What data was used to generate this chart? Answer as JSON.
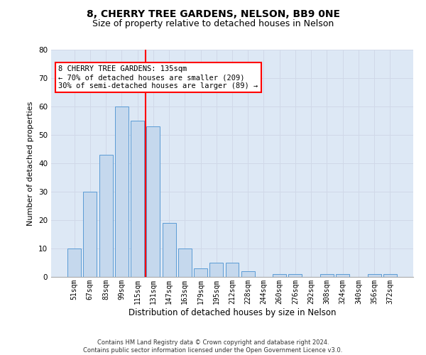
{
  "title": "8, CHERRY TREE GARDENS, NELSON, BB9 0NE",
  "subtitle": "Size of property relative to detached houses in Nelson",
  "xlabel": "Distribution of detached houses by size in Nelson",
  "ylabel": "Number of detached properties",
  "categories": [
    "51sqm",
    "67sqm",
    "83sqm",
    "99sqm",
    "115sqm",
    "131sqm",
    "147sqm",
    "163sqm",
    "179sqm",
    "195sqm",
    "212sqm",
    "228sqm",
    "244sqm",
    "260sqm",
    "276sqm",
    "292sqm",
    "308sqm",
    "324sqm",
    "340sqm",
    "356sqm",
    "372sqm"
  ],
  "values": [
    10,
    30,
    43,
    60,
    55,
    53,
    19,
    10,
    3,
    5,
    5,
    2,
    0,
    1,
    1,
    0,
    1,
    1,
    0,
    1,
    1
  ],
  "bar_color": "#c5d8ed",
  "bar_edge_color": "#5b9bd5",
  "grid_color": "#d0d8e8",
  "background_color": "#dde8f5",
  "vline_color": "red",
  "annotation_text": "8 CHERRY TREE GARDENS: 135sqm\n← 70% of detached houses are smaller (209)\n30% of semi-detached houses are larger (89) →",
  "annotation_box_color": "white",
  "annotation_box_edge": "red",
  "ylim": [
    0,
    80
  ],
  "yticks": [
    0,
    10,
    20,
    30,
    40,
    50,
    60,
    70,
    80
  ],
  "footnote": "Contains HM Land Registry data © Crown copyright and database right 2024.\nContains public sector information licensed under the Open Government Licence v3.0.",
  "title_fontsize": 10,
  "subtitle_fontsize": 9,
  "tick_fontsize": 7,
  "ylabel_fontsize": 8,
  "xlabel_fontsize": 8.5,
  "footnote_fontsize": 6,
  "annotation_fontsize": 7.5
}
